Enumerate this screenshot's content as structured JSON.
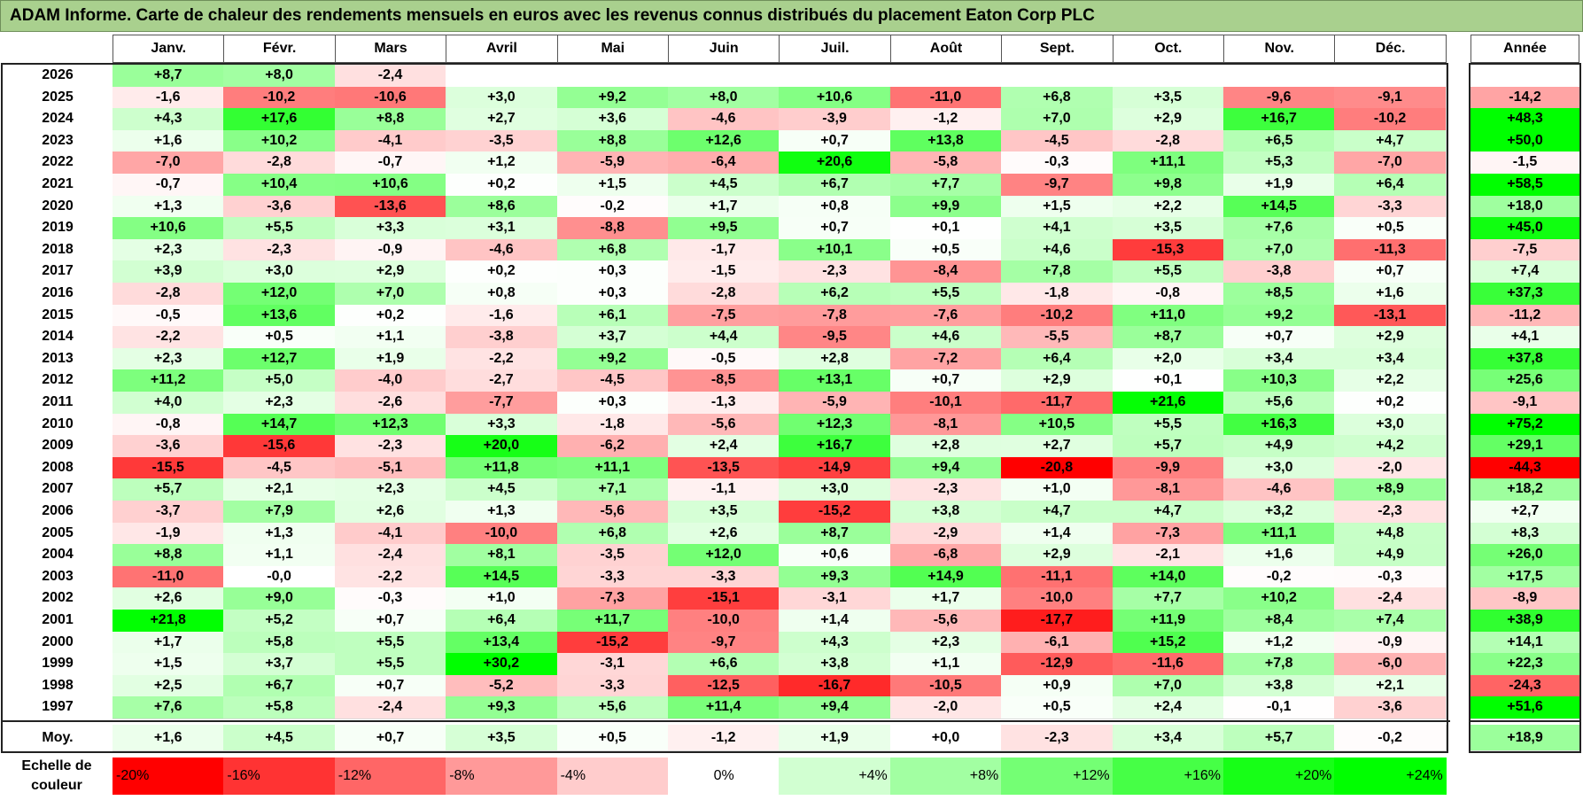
{
  "title": "ADAM Informe. Carte de chaleur des rendements mensuels en euros avec les revenus connus distribués du placement Eaton Corp PLC",
  "months": [
    "Janv.",
    "Févr.",
    "Mars",
    "Avril",
    "Mai",
    "Juin",
    "Juil.",
    "Août",
    "Sept.",
    "Oct.",
    "Nov.",
    "Déc."
  ],
  "year_header": "Année",
  "avg_label": "Moy.",
  "scale_label": "Echelle de couleur",
  "colors": {
    "title_bg": "#a9d08e",
    "negative_max": "#ff0000",
    "positive_max": "#00ff00",
    "neutral": "#ffffff"
  },
  "chart_data": {
    "type": "heatmap",
    "title": "ADAM Informe. Carte de chaleur des rendements mensuels en euros avec les revenus connus distribués du placement Eaton Corp PLC",
    "columns": [
      "Janv.",
      "Févr.",
      "Mars",
      "Avril",
      "Mai",
      "Juin",
      "Juil.",
      "Août",
      "Sept.",
      "Oct.",
      "Nov.",
      "Déc."
    ],
    "rows": [
      {
        "year": "2026",
        "values": [
          "+8,7",
          "+8,0",
          "-2,4",
          "",
          "",
          "",
          "",
          "",
          "",
          "",
          "",
          ""
        ],
        "annual": ""
      },
      {
        "year": "2025",
        "values": [
          "-1,6",
          "-10,2",
          "-10,6",
          "+3,0",
          "+9,2",
          "+8,0",
          "+10,6",
          "-11,0",
          "+6,8",
          "+3,5",
          "-9,6",
          "-9,1"
        ],
        "annual": "-14,2"
      },
      {
        "year": "2024",
        "values": [
          "+4,3",
          "+17,6",
          "+8,8",
          "+2,7",
          "+3,6",
          "-4,6",
          "-3,9",
          "-1,2",
          "+7,0",
          "+2,9",
          "+16,7",
          "-10,2"
        ],
        "annual": "+48,3"
      },
      {
        "year": "2023",
        "values": [
          "+1,6",
          "+10,2",
          "-4,1",
          "-3,5",
          "+8,8",
          "+12,6",
          "+0,7",
          "+13,8",
          "-4,5",
          "-2,8",
          "+6,5",
          "+4,7"
        ],
        "annual": "+50,0"
      },
      {
        "year": "2022",
        "values": [
          "-7,0",
          "-2,8",
          "-0,7",
          "+1,2",
          "-5,9",
          "-6,4",
          "+20,6",
          "-5,8",
          "-0,3",
          "+11,1",
          "+5,3",
          "-7,0"
        ],
        "annual": "-1,5"
      },
      {
        "year": "2021",
        "values": [
          "-0,7",
          "+10,4",
          "+10,6",
          "+0,2",
          "+1,5",
          "+4,5",
          "+6,7",
          "+7,7",
          "-9,7",
          "+9,8",
          "+1,9",
          "+6,4"
        ],
        "annual": "+58,5"
      },
      {
        "year": "2020",
        "values": [
          "+1,3",
          "-3,6",
          "-13,6",
          "+8,6",
          "-0,2",
          "+1,7",
          "+0,8",
          "+9,9",
          "+1,5",
          "+2,2",
          "+14,5",
          "-3,3"
        ],
        "annual": "+18,0"
      },
      {
        "year": "2019",
        "values": [
          "+10,6",
          "+5,5",
          "+3,3",
          "+3,1",
          "-8,8",
          "+9,5",
          "+0,7",
          "+0,1",
          "+4,1",
          "+3,5",
          "+7,6",
          "+0,5"
        ],
        "annual": "+45,0"
      },
      {
        "year": "2018",
        "values": [
          "+2,3",
          "-2,3",
          "-0,9",
          "-4,6",
          "+6,8",
          "-1,7",
          "+10,1",
          "+0,5",
          "+4,6",
          "-15,3",
          "+7,0",
          "-11,3"
        ],
        "annual": "-7,5"
      },
      {
        "year": "2017",
        "values": [
          "+3,9",
          "+3,0",
          "+2,9",
          "+0,2",
          "+0,3",
          "-1,5",
          "-2,3",
          "-8,4",
          "+7,8",
          "+5,5",
          "-3,8",
          "+0,7"
        ],
        "annual": "+7,4"
      },
      {
        "year": "2016",
        "values": [
          "-2,8",
          "+12,0",
          "+7,0",
          "+0,8",
          "+0,3",
          "-2,8",
          "+6,2",
          "+5,5",
          "-1,8",
          "-0,8",
          "+8,5",
          "+1,6"
        ],
        "annual": "+37,3"
      },
      {
        "year": "2015",
        "values": [
          "-0,5",
          "+13,6",
          "+0,2",
          "-1,6",
          "+6,1",
          "-7,5",
          "-7,8",
          "-7,6",
          "-10,2",
          "+11,0",
          "+9,2",
          "-13,1"
        ],
        "annual": "-11,2"
      },
      {
        "year": "2014",
        "values": [
          "-2,2",
          "+0,5",
          "+1,1",
          "-3,8",
          "+3,7",
          "+4,4",
          "-9,5",
          "+4,6",
          "-5,5",
          "+8,7",
          "+0,7",
          "+2,9"
        ],
        "annual": "+4,1"
      },
      {
        "year": "2013",
        "values": [
          "+2,3",
          "+12,7",
          "+1,9",
          "-2,2",
          "+9,2",
          "-0,5",
          "+2,8",
          "-7,2",
          "+6,4",
          "+2,0",
          "+3,4",
          "+3,4"
        ],
        "annual": "+37,8"
      },
      {
        "year": "2012",
        "values": [
          "+11,2",
          "+5,0",
          "-4,0",
          "-2,7",
          "-4,5",
          "-8,5",
          "+13,1",
          "+0,7",
          "+2,9",
          "+0,1",
          "+10,3",
          "+2,2"
        ],
        "annual": "+25,6"
      },
      {
        "year": "2011",
        "values": [
          "+4,0",
          "+2,3",
          "-2,6",
          "-7,7",
          "+0,3",
          "-1,3",
          "-5,9",
          "-10,1",
          "-11,7",
          "+21,6",
          "+5,6",
          "+0,2"
        ],
        "annual": "-9,1"
      },
      {
        "year": "2010",
        "values": [
          "-0,8",
          "+14,7",
          "+12,3",
          "+3,3",
          "-1,8",
          "-5,6",
          "+12,3",
          "-8,1",
          "+10,5",
          "+5,5",
          "+16,3",
          "+3,0"
        ],
        "annual": "+75,2"
      },
      {
        "year": "2009",
        "values": [
          "-3,6",
          "-15,6",
          "-2,3",
          "+20,0",
          "-6,2",
          "+2,4",
          "+16,7",
          "+2,8",
          "+2,7",
          "+5,7",
          "+4,9",
          "+4,2"
        ],
        "annual": "+29,1"
      },
      {
        "year": "2008",
        "values": [
          "-15,5",
          "-4,5",
          "-5,1",
          "+11,8",
          "+11,1",
          "-13,5",
          "-14,9",
          "+9,4",
          "-20,8",
          "-9,9",
          "+3,0",
          "-2,0"
        ],
        "annual": "-44,3"
      },
      {
        "year": "2007",
        "values": [
          "+5,7",
          "+2,1",
          "+2,3",
          "+4,5",
          "+7,1",
          "-1,1",
          "+3,0",
          "-2,3",
          "+1,0",
          "-8,1",
          "-4,6",
          "+8,9"
        ],
        "annual": "+18,2"
      },
      {
        "year": "2006",
        "values": [
          "-3,7",
          "+7,9",
          "+2,6",
          "+1,3",
          "-5,6",
          "+3,5",
          "-15,2",
          "+3,8",
          "+4,7",
          "+4,7",
          "+3,2",
          "-2,3"
        ],
        "annual": "+2,7"
      },
      {
        "year": "2005",
        "values": [
          "-1,9",
          "+1,3",
          "-4,1",
          "-10,0",
          "+6,8",
          "+2,6",
          "+8,7",
          "-2,9",
          "+1,4",
          "-7,3",
          "+11,1",
          "+4,8"
        ],
        "annual": "+8,3"
      },
      {
        "year": "2004",
        "values": [
          "+8,8",
          "+1,1",
          "-2,4",
          "+8,1",
          "-3,5",
          "+12,0",
          "+0,6",
          "-6,8",
          "+2,9",
          "-2,1",
          "+1,6",
          "+4,9"
        ],
        "annual": "+26,0"
      },
      {
        "year": "2003",
        "values": [
          "-11,0",
          "-0,0",
          "-2,2",
          "+14,5",
          "-3,3",
          "-3,3",
          "+9,3",
          "+14,9",
          "-11,1",
          "+14,0",
          "-0,2",
          "-0,3"
        ],
        "annual": "+17,5"
      },
      {
        "year": "2002",
        "values": [
          "+2,6",
          "+9,0",
          "-0,3",
          "+1,0",
          "-7,3",
          "-15,1",
          "-3,1",
          "+1,7",
          "-10,0",
          "+7,7",
          "+10,2",
          "-2,4"
        ],
        "annual": "-8,9"
      },
      {
        "year": "2001",
        "values": [
          "+21,8",
          "+5,2",
          "+0,7",
          "+6,4",
          "+11,7",
          "-10,0",
          "+1,4",
          "-5,6",
          "-17,7",
          "+11,9",
          "+8,4",
          "+7,4"
        ],
        "annual": "+38,9"
      },
      {
        "year": "2000",
        "values": [
          "+1,7",
          "+5,8",
          "+5,5",
          "+13,4",
          "-15,2",
          "-9,7",
          "+4,3",
          "+2,3",
          "-6,1",
          "+15,2",
          "+1,2",
          "-0,9"
        ],
        "annual": "+14,1"
      },
      {
        "year": "1999",
        "values": [
          "+1,5",
          "+3,7",
          "+5,5",
          "+30,2",
          "-3,1",
          "+6,6",
          "+3,8",
          "+1,1",
          "-12,9",
          "-11,6",
          "+7,8",
          "-6,0"
        ],
        "annual": "+22,3"
      },
      {
        "year": "1998",
        "values": [
          "+2,5",
          "+6,7",
          "+0,7",
          "-5,2",
          "-3,3",
          "-12,5",
          "-16,7",
          "-10,5",
          "+0,9",
          "+7,0",
          "+3,8",
          "+2,1"
        ],
        "annual": "-24,3"
      },
      {
        "year": "1997",
        "values": [
          "+7,6",
          "+5,8",
          "-2,4",
          "+9,3",
          "+5,6",
          "+11,4",
          "+9,4",
          "-2,0",
          "+0,5",
          "+2,4",
          "-0,1",
          "-3,6"
        ],
        "annual": "+51,6"
      }
    ],
    "average": {
      "values": [
        "+1,6",
        "+4,5",
        "+0,7",
        "+3,5",
        "+0,5",
        "-1,2",
        "+1,9",
        "+0,0",
        "-2,3",
        "+3,4",
        "+5,7",
        "-0,2"
      ],
      "annual": "+18,9"
    },
    "color_scale": [
      "-20%",
      "-16%",
      "-12%",
      "-8%",
      "-4%",
      "0%",
      "+4%",
      "+8%",
      "+12%",
      "+16%",
      "+20%",
      "+24%"
    ]
  }
}
